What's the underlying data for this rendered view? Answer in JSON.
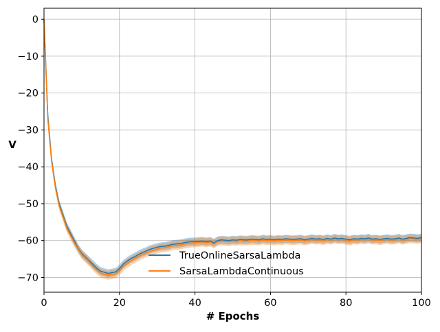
{
  "chart_data": {
    "type": "line",
    "xlabel": "# Epochs",
    "ylabel": "V",
    "xlim": [
      0,
      100
    ],
    "ylim": [
      -74,
      3
    ],
    "xticks": [
      0,
      20,
      40,
      60,
      80,
      100
    ],
    "yticks": [
      0,
      -10,
      -20,
      -30,
      -40,
      -50,
      -60,
      -70
    ],
    "xtick_labels": [
      "0",
      "20",
      "40",
      "60",
      "80",
      "100"
    ],
    "ytick_labels": [
      "0",
      "−10",
      "−20",
      "−30",
      "−40",
      "−50",
      "−60",
      "−70"
    ],
    "grid": true,
    "legend_position": "center-bottom",
    "series": [
      {
        "name": "TrueOnlineSarsaLambda",
        "color": "#1f77b4",
        "band_halfwidth": 1.1,
        "x": [
          0,
          1,
          2,
          3,
          4,
          5,
          6,
          7,
          8,
          9,
          10,
          11,
          12,
          13,
          14,
          15,
          16,
          17,
          18,
          19,
          20,
          21,
          22,
          23,
          24,
          25,
          26,
          27,
          28,
          29,
          30,
          31,
          32,
          33,
          34,
          35,
          36,
          37,
          38,
          39,
          40,
          41,
          42,
          43,
          44,
          45,
          46,
          47,
          48,
          49,
          50,
          51,
          52,
          53,
          54,
          55,
          56,
          57,
          58,
          59,
          60,
          61,
          62,
          63,
          64,
          65,
          66,
          67,
          68,
          69,
          70,
          71,
          72,
          73,
          74,
          75,
          76,
          77,
          78,
          79,
          80,
          81,
          82,
          83,
          84,
          85,
          86,
          87,
          88,
          89,
          90,
          91,
          92,
          93,
          94,
          95,
          96,
          97,
          98,
          99,
          100
        ],
        "values": [
          0,
          -26,
          -38,
          -45,
          -50,
          -53,
          -56,
          -58,
          -60,
          -62,
          -63.5,
          -64.5,
          -65.5,
          -66.5,
          -67.5,
          -68.3,
          -68.6,
          -68.9,
          -68.7,
          -68.5,
          -67.6,
          -66.4,
          -65.6,
          -64.9,
          -64.4,
          -63.8,
          -63.3,
          -62.9,
          -62.4,
          -62.1,
          -61.8,
          -61.6,
          -61.5,
          -61.3,
          -61.0,
          -60.9,
          -60.8,
          -60.6,
          -60.4,
          -60.3,
          -60.3,
          -60.2,
          -60.1,
          -60.3,
          -60.1,
          -60.6,
          -60.0,
          -59.8,
          -59.9,
          -60.0,
          -59.8,
          -59.9,
          -59.7,
          -59.8,
          -59.8,
          -59.6,
          -59.7,
          -59.8,
          -59.5,
          -59.7,
          -59.6,
          -59.8,
          -59.6,
          -59.7,
          -59.5,
          -59.6,
          -59.7,
          -59.6,
          -59.5,
          -59.8,
          -59.6,
          -59.4,
          -59.6,
          -59.5,
          -59.7,
          -59.4,
          -59.6,
          -59.3,
          -59.5,
          -59.4,
          -59.6,
          -59.8,
          -59.5,
          -59.6,
          -59.4,
          -59.5,
          -59.3,
          -59.6,
          -59.5,
          -59.7,
          -59.5,
          -59.4,
          -59.6,
          -59.5,
          -59.3,
          -59.6,
          -59.4,
          -59.2,
          -59.3,
          -59.4,
          -59.2
        ]
      },
      {
        "name": "SarsaLambdaContinuous",
        "color": "#ff7f0e",
        "band_halfwidth": 1.2,
        "x": [
          0,
          1,
          2,
          3,
          4,
          5,
          6,
          7,
          8,
          9,
          10,
          11,
          12,
          13,
          14,
          15,
          16,
          17,
          18,
          19,
          20,
          21,
          22,
          23,
          24,
          25,
          26,
          27,
          28,
          29,
          30,
          31,
          32,
          33,
          34,
          35,
          36,
          37,
          38,
          39,
          40,
          41,
          42,
          43,
          44,
          45,
          46,
          47,
          48,
          49,
          50,
          51,
          52,
          53,
          54,
          55,
          56,
          57,
          58,
          59,
          60,
          61,
          62,
          63,
          64,
          65,
          66,
          67,
          68,
          69,
          70,
          71,
          72,
          73,
          74,
          75,
          76,
          77,
          78,
          79,
          80,
          81,
          82,
          83,
          84,
          85,
          86,
          87,
          88,
          89,
          90,
          91,
          92,
          93,
          94,
          95,
          96,
          97,
          98,
          99,
          100
        ],
        "values": [
          0,
          -27,
          -38.5,
          -45.5,
          -50.5,
          -53.5,
          -56.5,
          -58.5,
          -60.5,
          -62.2,
          -63.8,
          -64.8,
          -65.8,
          -67,
          -68,
          -68.8,
          -69.2,
          -69.4,
          -69.2,
          -69,
          -68.2,
          -67,
          -66.2,
          -65.5,
          -64.9,
          -64.3,
          -63.8,
          -63.4,
          -62.9,
          -62.6,
          -62.3,
          -62.0,
          -61.9,
          -61.7,
          -61.4,
          -61.3,
          -61.2,
          -61.0,
          -60.8,
          -60.7,
          -60.6,
          -60.5,
          -60.4,
          -60.6,
          -60.4,
          -60.9,
          -60.3,
          -60.1,
          -60.2,
          -60.3,
          -60.1,
          -60.2,
          -60.0,
          -60.1,
          -60.1,
          -59.9,
          -60.0,
          -60.1,
          -59.8,
          -60.0,
          -59.9,
          -60.1,
          -59.9,
          -60.0,
          -59.8,
          -59.9,
          -60.0,
          -59.9,
          -59.8,
          -60.1,
          -59.9,
          -59.7,
          -59.9,
          -59.8,
          -60.0,
          -59.7,
          -59.9,
          -59.6,
          -59.8,
          -59.7,
          -59.9,
          -60.1,
          -59.8,
          -59.9,
          -59.7,
          -59.8,
          -59.6,
          -59.9,
          -59.8,
          -60.0,
          -59.8,
          -59.7,
          -59.9,
          -59.8,
          -59.6,
          -59.9,
          -59.7,
          -59.5,
          -59.6,
          -59.7,
          -59.5
        ]
      }
    ]
  }
}
